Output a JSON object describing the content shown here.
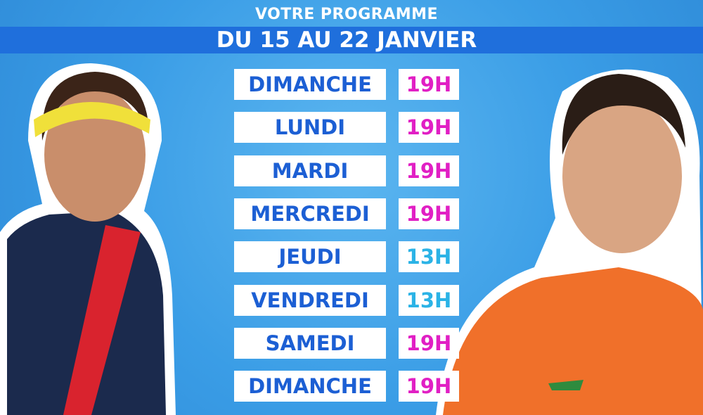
{
  "header": {
    "kicker": "VOTRE PROGRAMME",
    "title": "DU 15 AU 22 JANVIER"
  },
  "schedule": {
    "rows": [
      {
        "day": "DIMANCHE",
        "time": "19H",
        "color": "#e11fc4"
      },
      {
        "day": "LUNDI",
        "time": "19H",
        "color": "#e11fc4"
      },
      {
        "day": "MARDI",
        "time": "19H",
        "color": "#e11fc4"
      },
      {
        "day": "MERCREDI",
        "time": "19H",
        "color": "#e11fc4"
      },
      {
        "day": "JEUDI",
        "time": "13H",
        "color": "#2bb3e6"
      },
      {
        "day": "VENDREDI",
        "time": "13H",
        "color": "#2bb3e6"
      },
      {
        "day": "SAMEDI",
        "time": "19H",
        "color": "#e11fc4"
      },
      {
        "day": "DIMANCHE",
        "time": "19H",
        "color": "#e11fc4"
      }
    ]
  }
}
